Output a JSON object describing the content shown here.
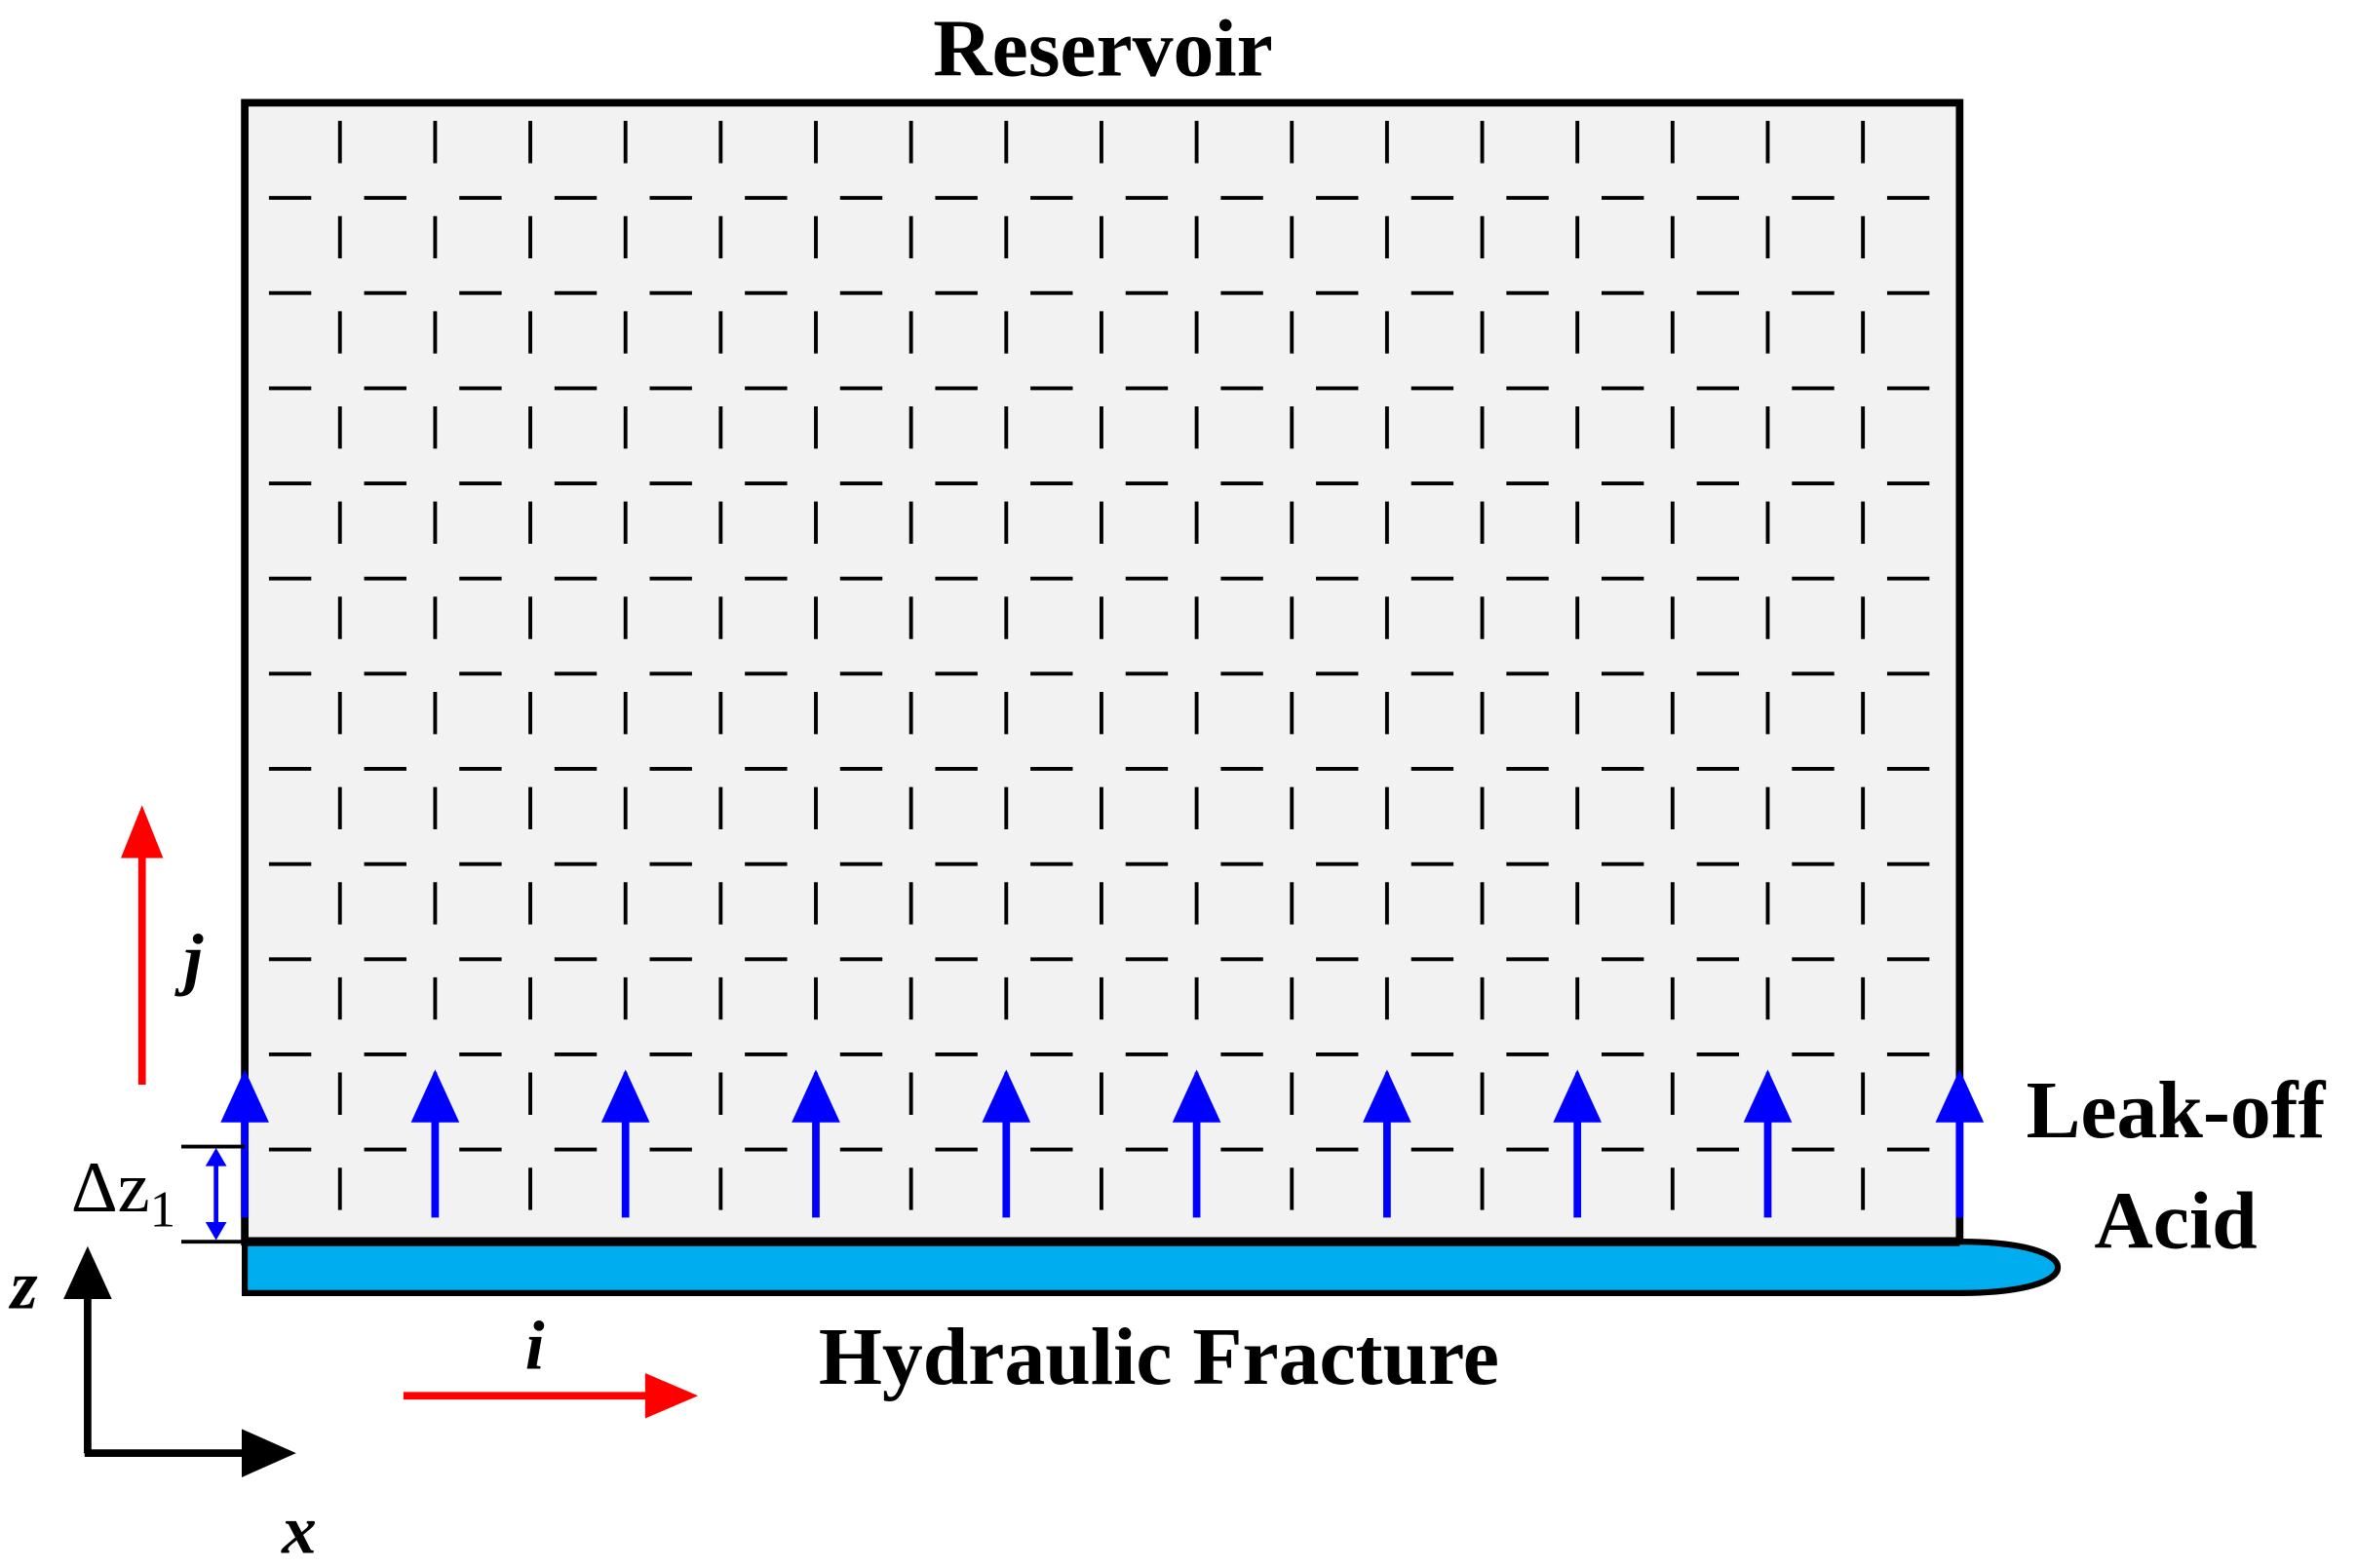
{
  "title": "Reservoir",
  "labels": {
    "leak_off": "Leak-off",
    "acid": "Acid",
    "fracture": "Hydraulic Fracture"
  },
  "indices": {
    "i": "i",
    "j": "j"
  },
  "axes": {
    "z": "z",
    "x": "x"
  },
  "cell": {
    "symbol": "Δz",
    "subscript": "1"
  }
}
